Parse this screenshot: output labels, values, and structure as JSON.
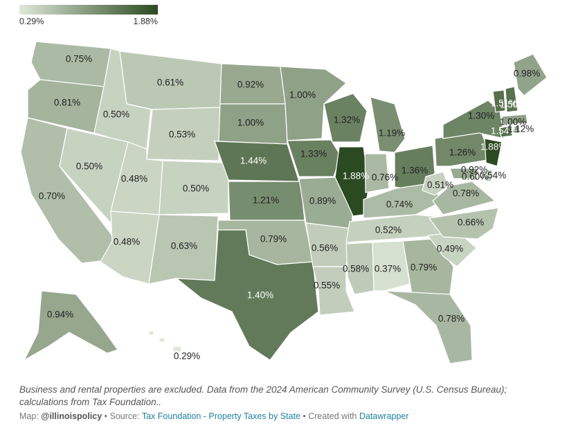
{
  "legend": {
    "min_label": "0.29%",
    "max_label": "1.88%",
    "min_value": 0.29,
    "max_value": 1.88,
    "color_low": "#dfe8d9",
    "color_high": "#2c4a22"
  },
  "map_data": {
    "type": "choropleth",
    "regions": [
      {
        "name": "Washington",
        "value": 0.75,
        "label": "0.75%"
      },
      {
        "name": "Oregon",
        "value": 0.81,
        "label": "0.81%"
      },
      {
        "name": "California",
        "value": 0.7,
        "label": "0.70%"
      },
      {
        "name": "Idaho",
        "value": 0.5,
        "label": "0.50%"
      },
      {
        "name": "Nevada",
        "value": 0.5,
        "label": "0.50%"
      },
      {
        "name": "Montana",
        "value": 0.61,
        "label": "0.61%"
      },
      {
        "name": "Wyoming",
        "value": 0.53,
        "label": "0.53%"
      },
      {
        "name": "Utah",
        "value": 0.48,
        "label": "0.48%"
      },
      {
        "name": "Colorado",
        "value": 0.5,
        "label": "0.50%"
      },
      {
        "name": "Arizona",
        "value": 0.48,
        "label": "0.48%"
      },
      {
        "name": "New Mexico",
        "value": 0.63,
        "label": "0.63%"
      },
      {
        "name": "North Dakota",
        "value": 0.92,
        "label": "0.92%"
      },
      {
        "name": "South Dakota",
        "value": 1.0,
        "label": "1.00%"
      },
      {
        "name": "Nebraska",
        "value": 1.44,
        "label": "1.44%"
      },
      {
        "name": "Kansas",
        "value": 1.21,
        "label": "1.21%"
      },
      {
        "name": "Oklahoma",
        "value": 0.79,
        "label": "0.79%"
      },
      {
        "name": "Texas",
        "value": 1.4,
        "label": "1.40%"
      },
      {
        "name": "Minnesota",
        "value": 1.0,
        "label": "1.00%"
      },
      {
        "name": "Iowa",
        "value": 1.33,
        "label": "1.33%"
      },
      {
        "name": "Missouri",
        "value": 0.89,
        "label": "0.89%"
      },
      {
        "name": "Arkansas",
        "value": 0.56,
        "label": "0.56%"
      },
      {
        "name": "Louisiana",
        "value": 0.55,
        "label": "0.55%"
      },
      {
        "name": "Wisconsin",
        "value": 1.32,
        "label": "1.32%"
      },
      {
        "name": "Illinois",
        "value": 1.88,
        "label": "1.88%"
      },
      {
        "name": "Michigan",
        "value": 1.19,
        "label": "1.19%"
      },
      {
        "name": "Indiana",
        "value": 0.76,
        "label": "0.76%"
      },
      {
        "name": "Ohio",
        "value": 1.36,
        "label": "1.36%"
      },
      {
        "name": "Kentucky",
        "value": 0.74,
        "label": "0.74%"
      },
      {
        "name": "Tennessee",
        "value": 0.52,
        "label": "0.52%"
      },
      {
        "name": "Mississippi",
        "value": 0.58,
        "label": "0.58%"
      },
      {
        "name": "Alabama",
        "value": 0.37,
        "label": "0.37%"
      },
      {
        "name": "Georgia",
        "value": 0.79,
        "label": "0.79%"
      },
      {
        "name": "Florida",
        "value": 0.78,
        "label": "0.78%"
      },
      {
        "name": "South Carolina",
        "value": 0.49,
        "label": "0.49%"
      },
      {
        "name": "North Carolina",
        "value": 0.66,
        "label": "0.66%"
      },
      {
        "name": "Virginia",
        "value": 0.78,
        "label": "0.78%"
      },
      {
        "name": "West Virginia",
        "value": 0.51,
        "label": "0.51%"
      },
      {
        "name": "Maryland",
        "value": 0.92,
        "label": "0.92%"
      },
      {
        "name": "Delaware",
        "value": 0.54,
        "label": "0.54%"
      },
      {
        "name": "District of Columbia",
        "value": 0.6,
        "label": "0.60%"
      },
      {
        "name": "Pennsylvania",
        "value": 1.26,
        "label": "1.26%"
      },
      {
        "name": "New Jersey",
        "value": 1.88,
        "label": "1.88%"
      },
      {
        "name": "New York",
        "value": 1.3,
        "label": "1.30%"
      },
      {
        "name": "Connecticut",
        "value": 1.54,
        "label": "1.54%"
      },
      {
        "name": "Rhode Island",
        "value": 1.12,
        "label": "1.12%"
      },
      {
        "name": "Massachusetts",
        "value": 1.0,
        "label": "1.00%"
      },
      {
        "name": "Vermont",
        "value": 1.51,
        "label": "1.51%"
      },
      {
        "name": "New Hampshire",
        "value": 1.5,
        "label": "1.50%"
      },
      {
        "name": "Maine",
        "value": 0.98,
        "label": "0.98%"
      },
      {
        "name": "Alaska",
        "value": 0.94,
        "label": "0.94%"
      },
      {
        "name": "Hawaii",
        "value": 0.29,
        "label": "0.29%"
      }
    ]
  },
  "notes": "Business and rental properties are excluded. Data from the 2024 American Community Survey (U.S. Census Bureau); calculations from Tax Foundation..",
  "credit": {
    "map_prefix": "Map: ",
    "map_author": "@illinoispolicy",
    "source_prefix": " • Source: ",
    "source_link": "Tax Foundation - Property Taxes by State",
    "created_prefix": " • Created with ",
    "created_link": "Datawrapper"
  }
}
